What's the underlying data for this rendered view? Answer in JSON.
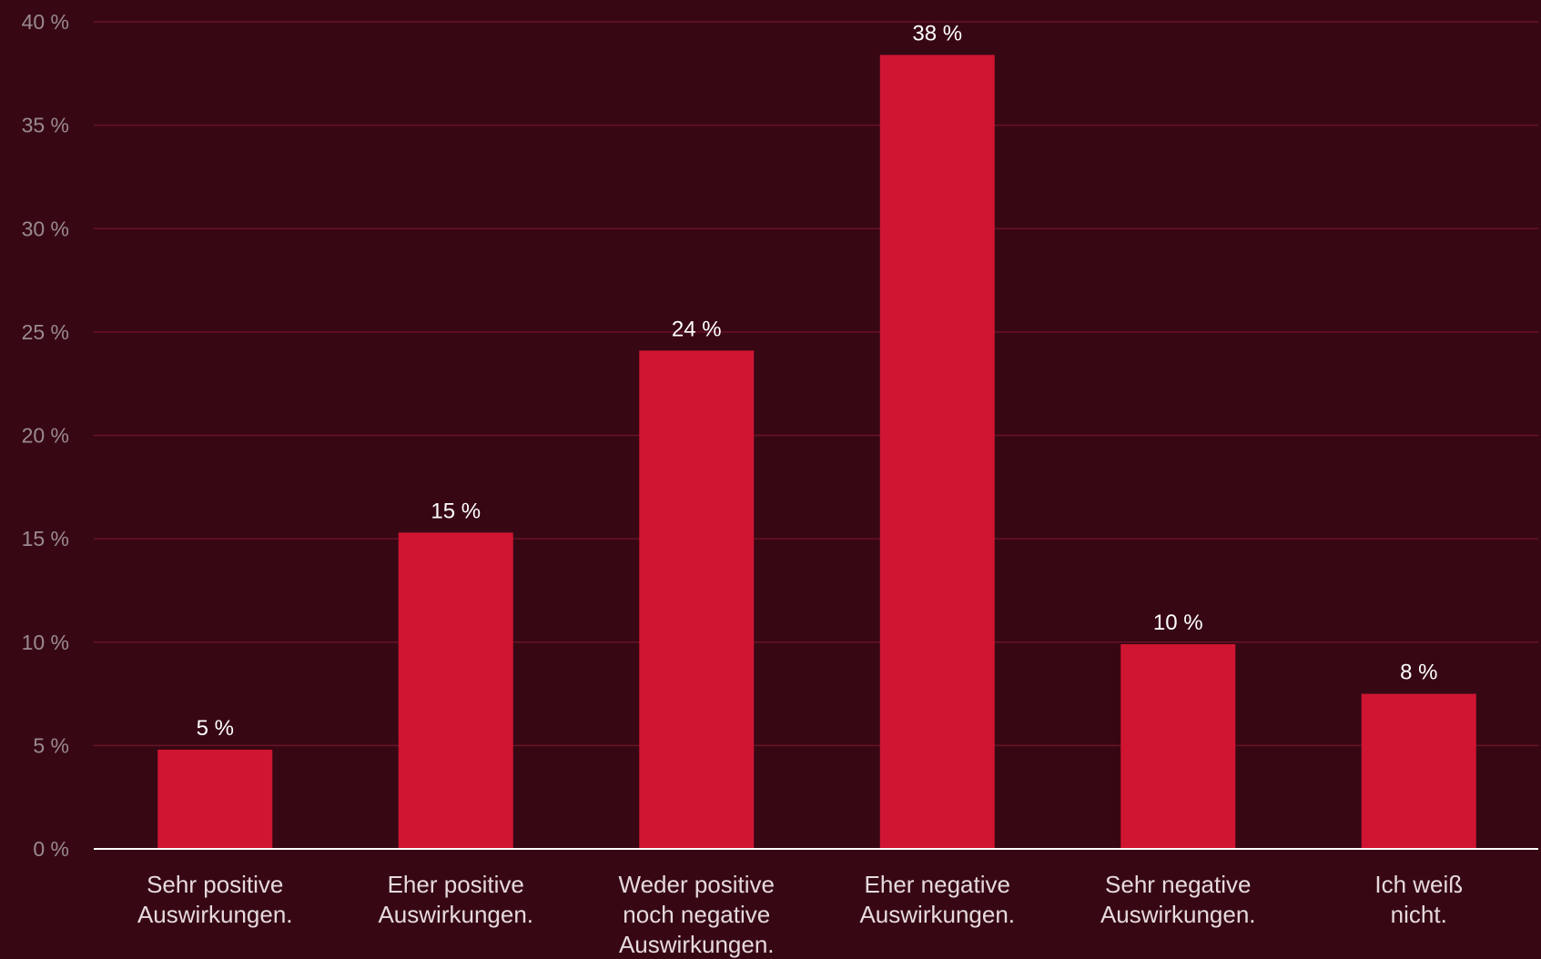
{
  "chart_data": {
    "type": "bar",
    "categories": [
      [
        "Sehr positive",
        "Auswirkungen."
      ],
      [
        "Eher positive",
        "Auswirkungen."
      ],
      [
        "Weder positive",
        "noch negative",
        "Auswirkungen."
      ],
      [
        "Eher negative",
        "Auswirkungen."
      ],
      [
        "Sehr negative",
        "Auswirkungen."
      ],
      [
        "Ich weiß",
        "nicht."
      ]
    ],
    "values": [
      4.8,
      15.3,
      24.1,
      38.4,
      9.9,
      7.5
    ],
    "data_labels": [
      "5 %",
      "15 %",
      "24 %",
      "38 %",
      "10 %",
      "8 %"
    ],
    "yticks": [
      0,
      5,
      10,
      15,
      20,
      25,
      30,
      35,
      40
    ],
    "ytick_labels": [
      "0 %",
      "5 %",
      "10 %",
      "15 %",
      "20 %",
      "25 %",
      "30 %",
      "35 %",
      "40 %"
    ],
    "ylim": [
      0,
      40
    ],
    "grid": true,
    "colors": {
      "background": "#370814",
      "bar": "#cf1532",
      "grid": "#6a1226",
      "baseline": "#ffffff"
    }
  }
}
